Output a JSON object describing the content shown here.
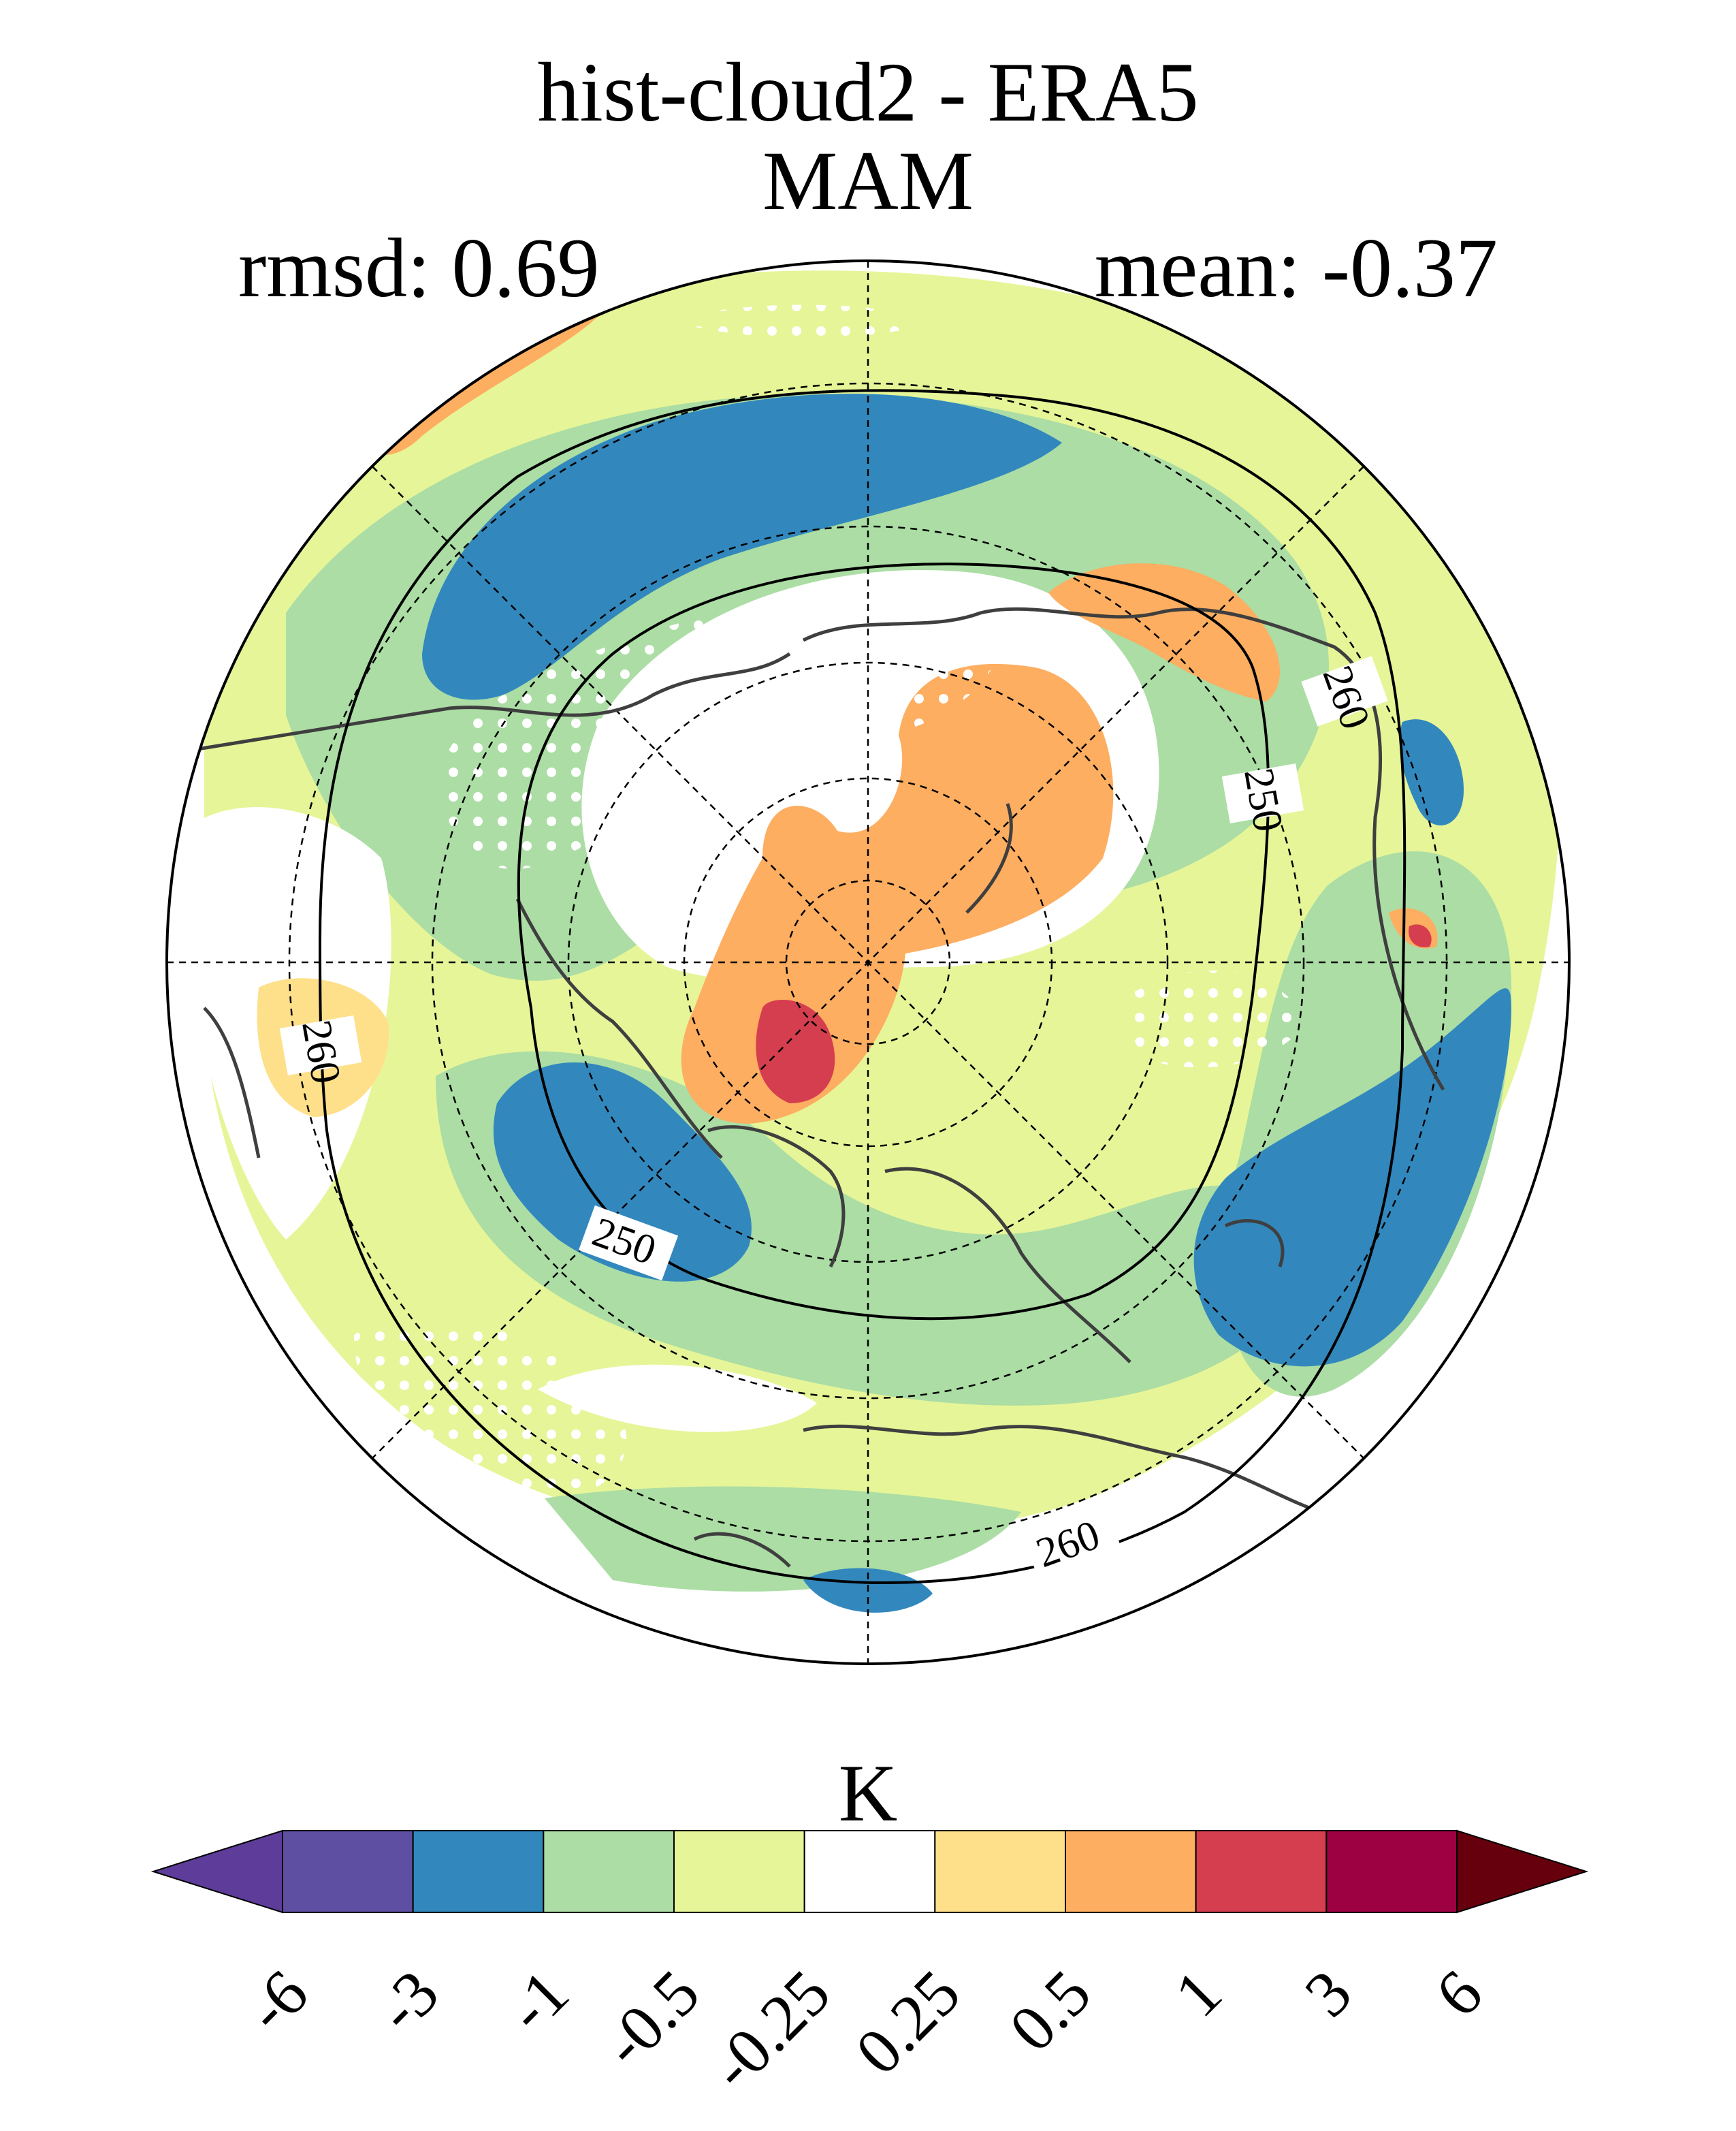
{
  "title": {
    "line1": "hist-cloud2 - ERA5",
    "line2": "MAM",
    "rmsd": "rmsd: 0.69",
    "mean": "mean: -0.37"
  },
  "map": {
    "projection": "north-polar-stereographic",
    "contour_labels": [
      "250",
      "250",
      "260",
      "260",
      "260"
    ],
    "stippling": "white dots mark regions"
  },
  "colorbar": {
    "units": "K",
    "ticks": [
      "-6",
      "-3",
      "-1",
      "-0.5",
      "-0.25",
      "0.25",
      "0.5",
      "1",
      "3",
      "6"
    ],
    "colors": [
      "#5e3c99",
      "#5e4fa2",
      "#3288bd",
      "#abdda4",
      "#e6f598",
      "#ffffff",
      "#fee08b",
      "#fdae61",
      "#d53e4f",
      "#9e0142",
      "#67000d"
    ],
    "extend": "both"
  }
}
